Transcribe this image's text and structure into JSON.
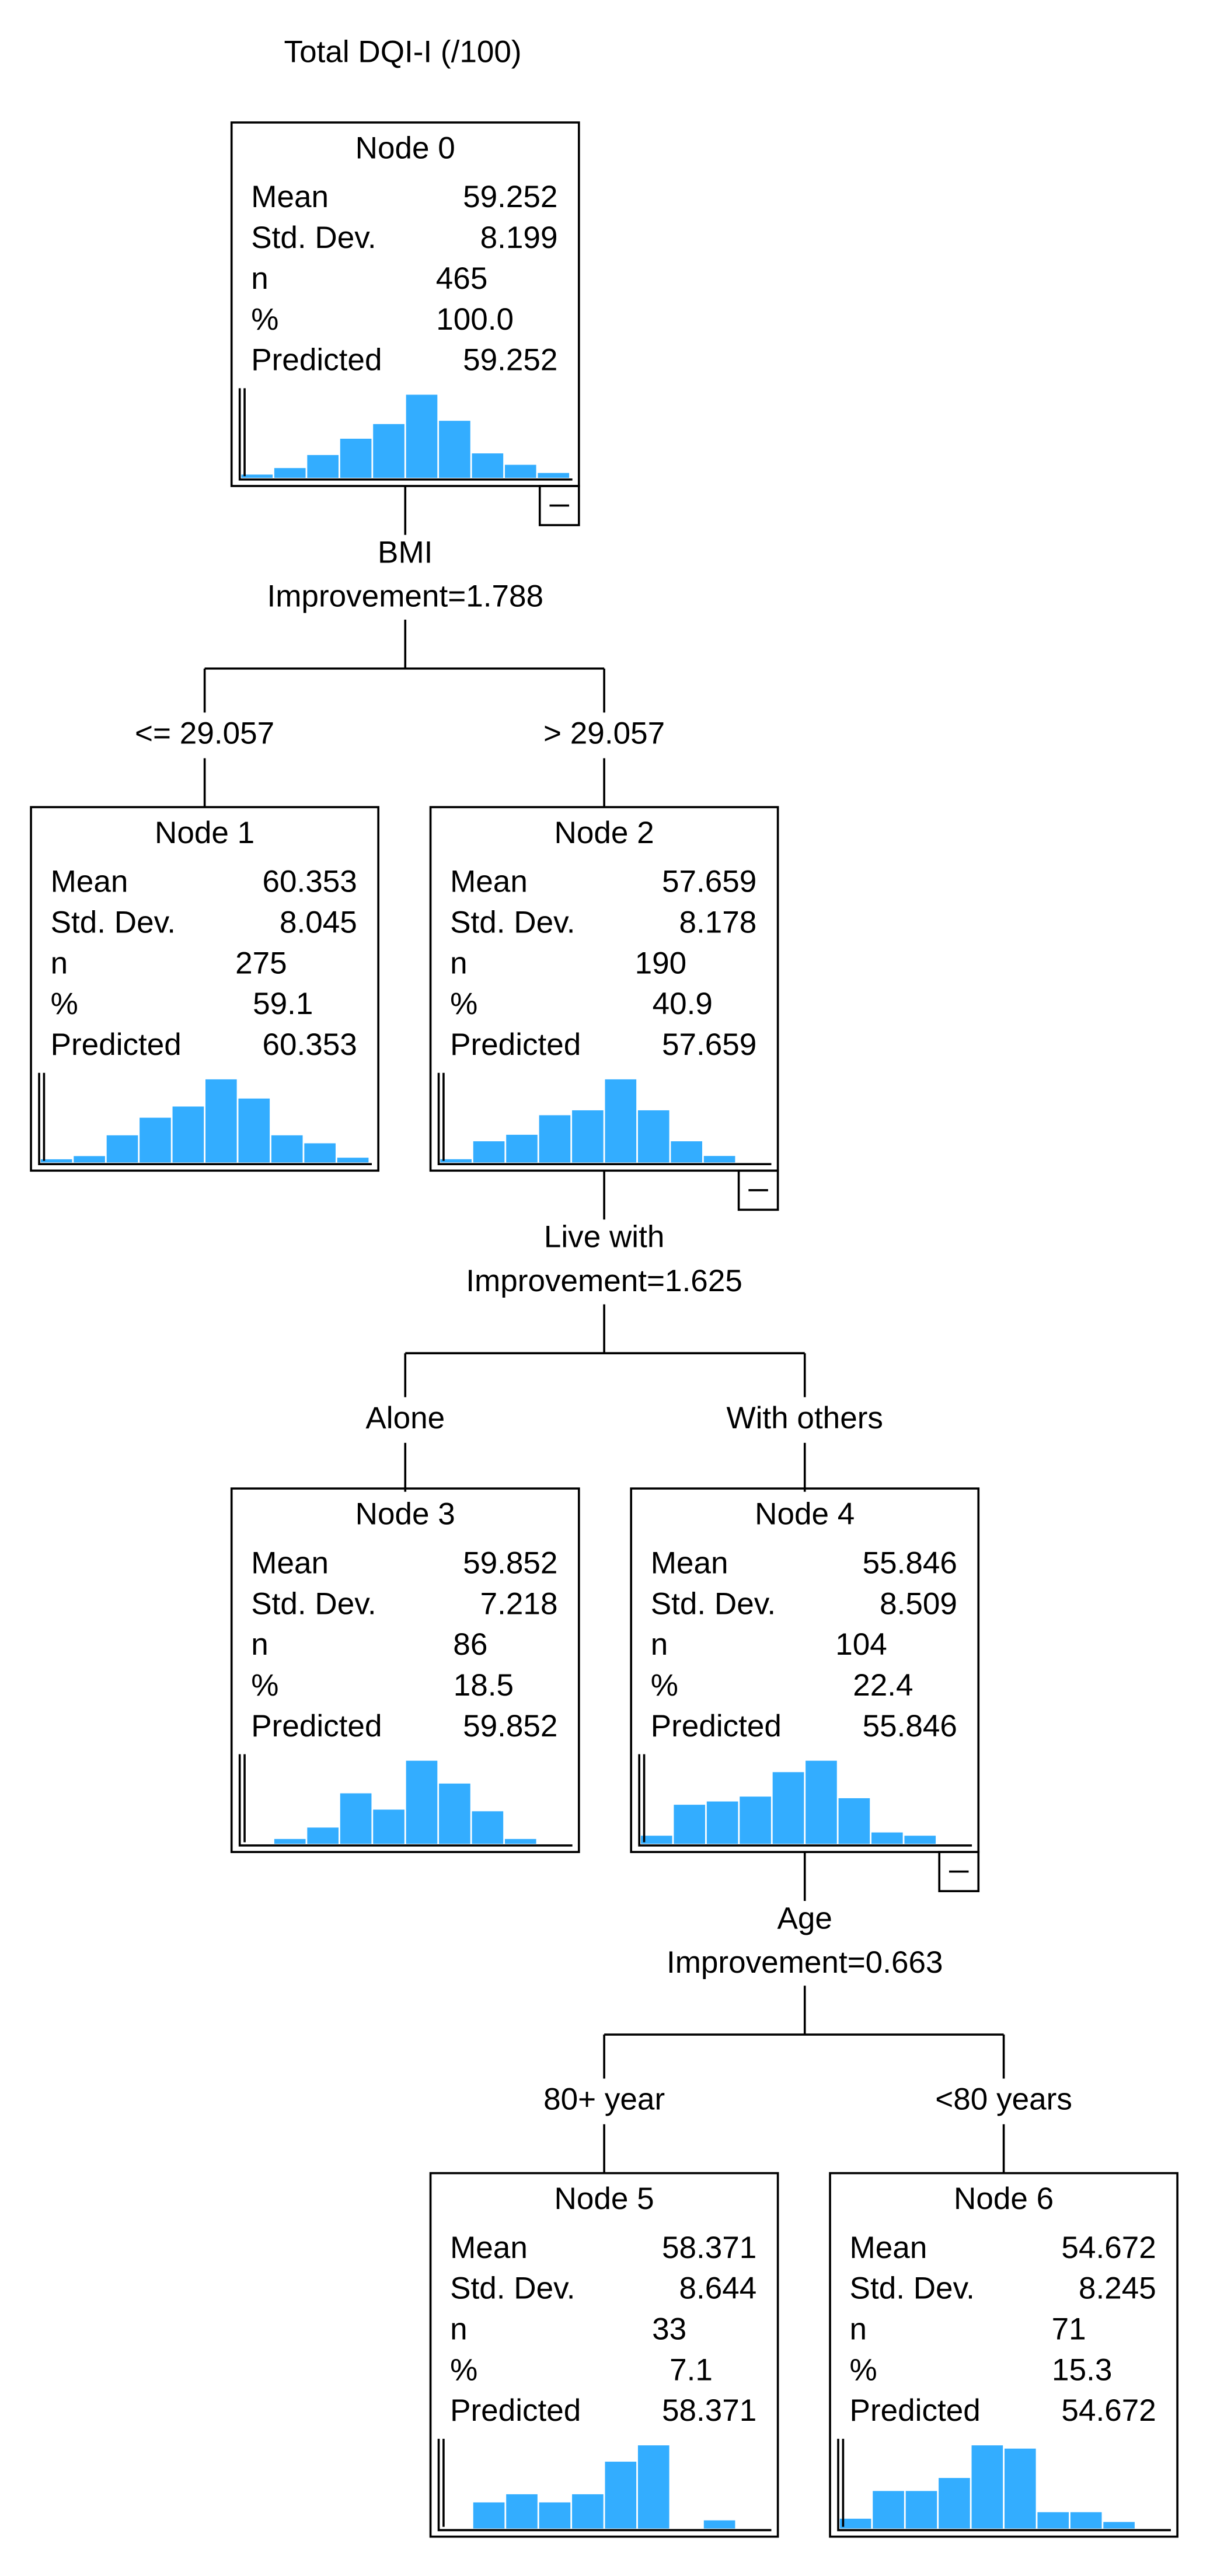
{
  "title": "Total DQI-I (/100)",
  "nodes": [
    {
      "label": "Node 0",
      "stats": [
        {
          "label": "Mean",
          "value": "59.252"
        },
        {
          "label": "Std. Dev.",
          "value": "8.199"
        },
        {
          "label": "n",
          "value": "465"
        },
        {
          "label": "%",
          "value": "100.0"
        },
        {
          "label": "Predicted",
          "value": "59.252"
        }
      ],
      "histogram": [
        2,
        6,
        14,
        24,
        33,
        51,
        35,
        15,
        8,
        3
      ]
    },
    {
      "label": "Node 1",
      "stats": [
        {
          "label": "Mean",
          "value": "60.353"
        },
        {
          "label": "Std. Dev.",
          "value": "8.045"
        },
        {
          "label": "n",
          "value": "275"
        },
        {
          "label": "%",
          "value": "59.1"
        },
        {
          "label": "Predicted",
          "value": "60.353"
        }
      ],
      "histogram": [
        2,
        4,
        17,
        28,
        35,
        52,
        40,
        17,
        12,
        3
      ]
    },
    {
      "label": "Node 2",
      "stats": [
        {
          "label": "Mean",
          "value": "57.659"
        },
        {
          "label": "Std. Dev.",
          "value": "8.178"
        },
        {
          "label": "n",
          "value": "190"
        },
        {
          "label": "%",
          "value": "40.9"
        },
        {
          "label": "Predicted",
          "value": "57.659"
        }
      ],
      "histogram": [
        2,
        13,
        17,
        29,
        32,
        51,
        32,
        13,
        4,
        0
      ]
    },
    {
      "label": "Node 3",
      "stats": [
        {
          "label": "Mean",
          "value": "59.852"
        },
        {
          "label": "Std. Dev.",
          "value": "7.218"
        },
        {
          "label": "n",
          "value": "86"
        },
        {
          "label": "%",
          "value": "18.5"
        },
        {
          "label": "Predicted",
          "value": "59.852"
        }
      ],
      "histogram": [
        0,
        3,
        10,
        31,
        21,
        51,
        37,
        20,
        3,
        0
      ]
    },
    {
      "label": "Node 4",
      "stats": [
        {
          "label": "Mean",
          "value": "55.846"
        },
        {
          "label": "Std. Dev.",
          "value": "8.509"
        },
        {
          "label": "n",
          "value": "104"
        },
        {
          "label": "%",
          "value": "22.4"
        },
        {
          "label": "Predicted",
          "value": "55.846"
        }
      ],
      "histogram": [
        5,
        24,
        26,
        29,
        44,
        51,
        28,
        7,
        5,
        0
      ]
    },
    {
      "label": "Node 5",
      "stats": [
        {
          "label": "Mean",
          "value": "58.371"
        },
        {
          "label": "Std. Dev.",
          "value": "8.644"
        },
        {
          "label": "n",
          "value": "33"
        },
        {
          "label": "%",
          "value": "7.1"
        },
        {
          "label": "Predicted",
          "value": "58.371"
        }
      ],
      "histogram": [
        0,
        16,
        21,
        16,
        21,
        41,
        51,
        0,
        5,
        0
      ]
    },
    {
      "label": "Node 6",
      "stats": [
        {
          "label": "Mean",
          "value": "54.672"
        },
        {
          "label": "Std. Dev.",
          "value": "8.245"
        },
        {
          "label": "n",
          "value": "71"
        },
        {
          "label": "%",
          "value": "15.3"
        },
        {
          "label": "Predicted",
          "value": "54.672"
        }
      ],
      "histogram": [
        6,
        23,
        23,
        31,
        51,
        49,
        10,
        10,
        4,
        0
      ]
    }
  ],
  "splits": [
    {
      "variable": "BMI",
      "improvement": "Improvement=1.788",
      "branches": [
        "<= 29.057",
        "> 29.057"
      ]
    },
    {
      "variable": "Live with",
      "improvement": "Improvement=1.625",
      "branches": [
        "Alone",
        "With others"
      ]
    },
    {
      "variable": "Age",
      "improvement": "Improvement=0.663",
      "branches": [
        "80+ year",
        "<80 years"
      ]
    }
  ]
}
